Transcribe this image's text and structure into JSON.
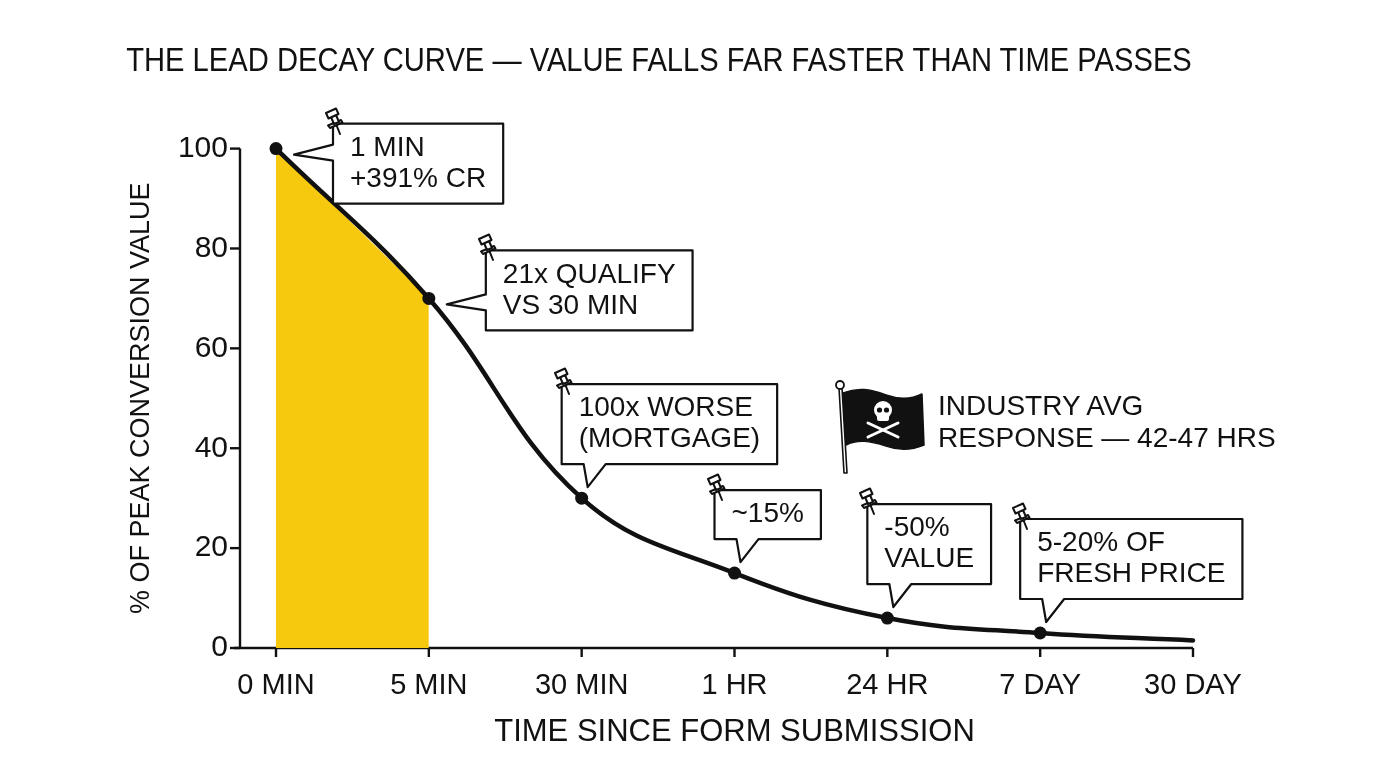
{
  "chart_data": {
    "type": "line",
    "title": "THE LEAD DECAY CURVE — VALUE FALLS FAR FASTER THAN TIME PASSES",
    "xlabel": "TIME SINCE FORM SUBMISSION",
    "ylabel": "% OF PEAK CONVERSION VALUE",
    "categories": [
      "0 MIN",
      "5 MIN",
      "30 MIN",
      "1 HR",
      "24 HR",
      "7 DAY",
      "30 DAY"
    ],
    "series": [
      {
        "type": "area",
        "color": "#f6c90e",
        "values": [
          100,
          70,
          null,
          null,
          null,
          null,
          null
        ]
      },
      {
        "type": "line",
        "color": "#111111",
        "values": [
          100,
          70,
          30,
          15,
          6,
          3,
          1.5
        ],
        "marker": "none"
      },
      {
        "type": "scatter",
        "color": "#111111",
        "values": [
          100,
          70,
          30,
          15,
          6,
          3,
          null
        ],
        "marker": "circle"
      }
    ],
    "ylim": [
      0,
      100
    ],
    "yticks": [
      0,
      20,
      40,
      60,
      80,
      100
    ],
    "annotations": [
      {
        "text": "1 MIN\n+391% CR",
        "x": "0 MIN",
        "y": 100
      },
      {
        "text": "21x QUALIFY\nVS 30 MIN",
        "x": "5 MIN",
        "y": 70
      },
      {
        "text": "100x WORSE\n(MORTGAGE)",
        "x": "30 MIN",
        "y": 30
      },
      {
        "text": "~15%",
        "x": "1 HR",
        "y": 15
      },
      {
        "text": "-50%\nVALUE",
        "x": "24 HR",
        "y": 6
      },
      {
        "text": "5-20% OF\nFRESH PRICE",
        "x": "7 DAY",
        "y": 3
      },
      "INDUSTRY AVG\nRESPONSE — 42-47 HRS"
    ]
  }
}
